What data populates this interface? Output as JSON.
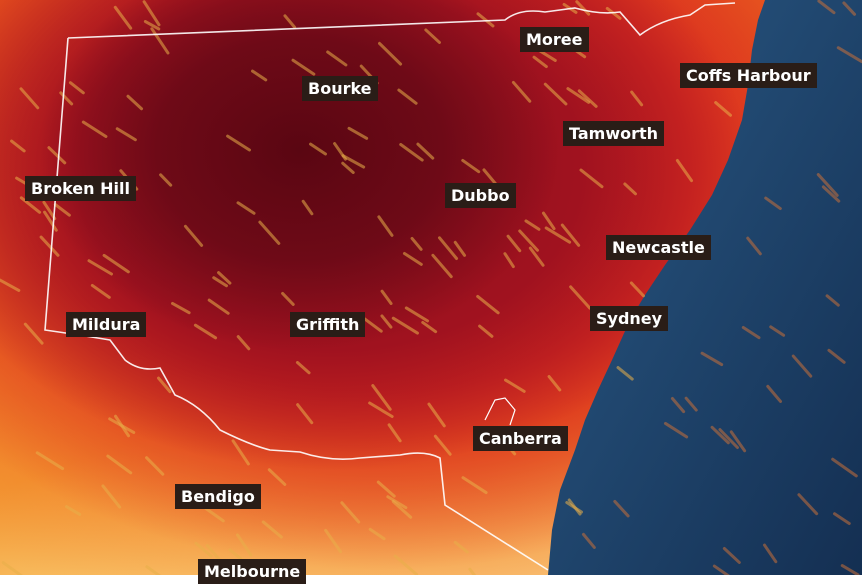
{
  "map": {
    "colors": {
      "hot_core": "#5a0612",
      "red": "#c41a22",
      "orange": "#f0701e",
      "yellow": "#fde7a8",
      "ocean": "#1d3f66",
      "border": "#ffffff",
      "label_bg": "#2a1d17"
    },
    "labels": [
      {
        "name": "Moree"
      },
      {
        "name": "Bourke"
      },
      {
        "name": "Coffs Harbour"
      },
      {
        "name": "Tamworth"
      },
      {
        "name": "Broken Hill"
      },
      {
        "name": "Dubbo"
      },
      {
        "name": "Newcastle"
      },
      {
        "name": "Mildura"
      },
      {
        "name": "Griffith"
      },
      {
        "name": "Sydney"
      },
      {
        "name": "Canberra"
      },
      {
        "name": "Bendigo"
      },
      {
        "name": "Melbourne"
      }
    ]
  }
}
